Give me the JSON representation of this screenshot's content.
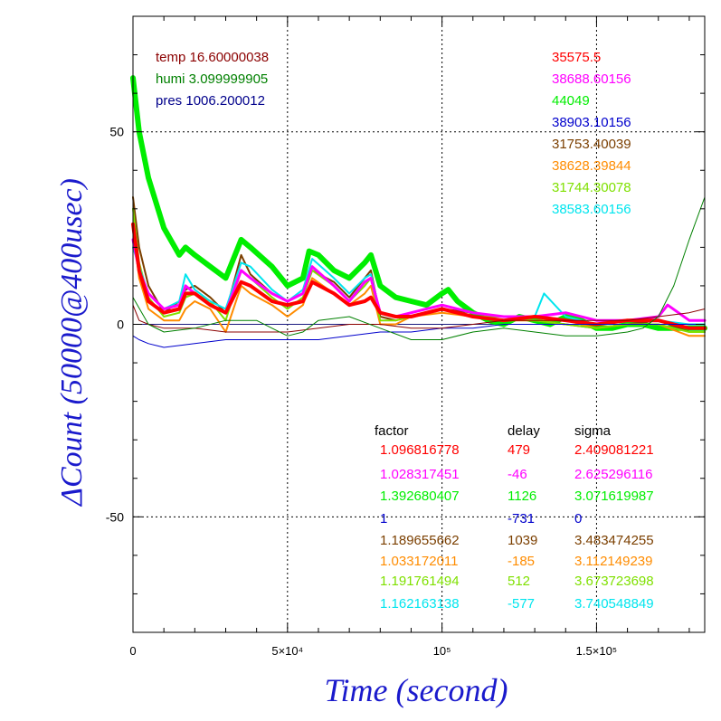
{
  "chart_data": {
    "type": "line",
    "xlabel": "Time (second)",
    "ylabel": "ΔCount (50000@400usec)",
    "xlim": [
      0,
      185000
    ],
    "ylim": [
      -80,
      80
    ],
    "grid": true,
    "x_ticks": [
      {
        "value": 0,
        "label": "0"
      },
      {
        "value": 50000,
        "label": "5×10⁴"
      },
      {
        "value": 100000,
        "label": "10⁵"
      },
      {
        "value": 150000,
        "label": "1.5×10⁵"
      }
    ],
    "y_ticks": [
      {
        "value": 50,
        "label": "50"
      },
      {
        "value": 0,
        "label": "0"
      },
      {
        "value": -50,
        "label": "-50"
      }
    ],
    "weather": [
      {
        "text": "temp 16.60000038",
        "color": "#8b0000"
      },
      {
        "text": "humi 3.099999905",
        "color": "#008000"
      },
      {
        "text": "pres 1006.200012",
        "color": "#00008b"
      }
    ],
    "means": [
      {
        "text": "35575.5",
        "color": "#ff0000"
      },
      {
        "text": "38688.60156",
        "color": "#ff00ff"
      },
      {
        "text": "44049",
        "color": "#00ee00"
      },
      {
        "text": "38903.10156",
        "color": "#0000cc"
      },
      {
        "text": "31753.40039",
        "color": "#7b3f00"
      },
      {
        "text": "38628.39844",
        "color": "#ff8c00"
      },
      {
        "text": "31744.30078",
        "color": "#7fe000"
      },
      {
        "text": "38583.60156",
        "color": "#00e5ee"
      }
    ],
    "table_headers": [
      "factor",
      "delay",
      "sigma"
    ],
    "table_rows": [
      {
        "factor": "1.096816778",
        "delay": "479",
        "sigma": "2.409081221",
        "color": "#ff0000"
      },
      {
        "factor": "1.028317451",
        "delay": "-46",
        "sigma": "2.625296116",
        "color": "#ff00ff"
      },
      {
        "factor": "1.392680407",
        "delay": "1126",
        "sigma": "3.071619987",
        "color": "#00ee00"
      },
      {
        "factor": "1",
        "delay": "-731",
        "sigma": "0",
        "color": "#0000cc"
      },
      {
        "factor": "1.189655662",
        "delay": "1039",
        "sigma": "3.483474255",
        "color": "#7b3f00"
      },
      {
        "factor": "1.033172011",
        "delay": "-185",
        "sigma": "3.112149239",
        "color": "#ff8c00"
      },
      {
        "factor": "1.191761494",
        "delay": "512",
        "sigma": "3.673723698",
        "color": "#7fe000"
      },
      {
        "factor": "1.162163138",
        "delay": "-577",
        "sigma": "3.740548849",
        "color": "#00e5ee"
      }
    ],
    "series": [
      {
        "color": "#00ee00",
        "width": 6,
        "x": [
          0,
          2000,
          5000,
          10000,
          15000,
          17000,
          20000,
          25000,
          30000,
          34000,
          35000,
          38000,
          45000,
          50000,
          55000,
          57000,
          60000,
          65000,
          70000,
          75000,
          77000,
          80000,
          85000,
          90000,
          95000,
          100000,
          102000,
          105000,
          110000,
          115000,
          120000,
          125000,
          130000,
          135000,
          140000,
          145000,
          150000,
          155000,
          160000,
          165000,
          170000,
          175000,
          180000,
          185000
        ],
        "y": [
          64,
          50,
          38,
          25,
          18,
          20,
          18,
          15,
          12,
          20,
          22,
          20,
          15,
          10,
          12,
          19,
          18,
          14,
          12,
          16,
          18,
          10,
          7,
          6,
          5,
          8,
          9,
          6,
          3,
          1,
          0,
          2,
          1,
          0,
          2,
          1,
          -1,
          -1,
          0,
          0,
          -1,
          -1,
          -1,
          -1
        ]
      },
      {
        "color": "#7b3f00",
        "width": 2,
        "x": [
          0,
          2000,
          5000,
          10000,
          15000,
          17000,
          20000,
          25000,
          30000,
          35000,
          38000,
          45000,
          50000,
          55000,
          58000,
          65000,
          70000,
          75000,
          77000,
          80000,
          85000,
          90000,
          100000,
          110000,
          120000,
          130000,
          140000,
          150000,
          160000,
          170000,
          180000,
          185000
        ],
        "y": [
          33,
          20,
          10,
          3,
          6,
          9,
          10,
          7,
          3,
          18,
          13,
          8,
          6,
          8,
          14,
          11,
          7,
          12,
          14,
          2,
          1,
          2,
          4,
          3,
          2,
          1,
          0,
          -1,
          0,
          1,
          -2,
          -2
        ]
      },
      {
        "color": "#ff8c00",
        "width": 2,
        "x": [
          0,
          2000,
          5000,
          10000,
          15000,
          17000,
          20000,
          25000,
          30000,
          35000,
          38000,
          45000,
          50000,
          55000,
          58000,
          65000,
          70000,
          75000,
          77000,
          80000,
          85000,
          90000,
          100000,
          110000,
          120000,
          130000,
          140000,
          150000,
          160000,
          170000,
          180000,
          185000
        ],
        "y": [
          25,
          12,
          4,
          1,
          1,
          4,
          6,
          4,
          -2,
          10,
          8,
          5,
          2,
          5,
          12,
          8,
          5,
          8,
          10,
          0,
          0,
          2,
          3,
          2,
          1,
          1,
          1,
          -1,
          0,
          0,
          -3,
          -3
        ]
      },
      {
        "color": "#7fe000",
        "width": 2,
        "x": [
          0,
          2000,
          5000,
          10000,
          15000,
          17000,
          20000,
          25000,
          30000,
          35000,
          38000,
          45000,
          50000,
          55000,
          58000,
          65000,
          70000,
          75000,
          77000,
          80000,
          85000,
          90000,
          100000,
          110000,
          120000,
          130000,
          140000,
          150000,
          160000,
          170000,
          180000,
          185000
        ],
        "y": [
          30,
          16,
          7,
          2,
          3,
          7,
          8,
          6,
          1,
          14,
          12,
          7,
          4,
          7,
          14,
          10,
          6,
          10,
          12,
          1,
          1,
          2,
          4,
          2,
          2,
          1,
          0,
          -1,
          0,
          0,
          -2,
          -2
        ]
      },
      {
        "color": "#00e5ee",
        "width": 2,
        "x": [
          0,
          2000,
          5000,
          10000,
          15000,
          17000,
          20000,
          25000,
          30000,
          35000,
          38000,
          45000,
          50000,
          55000,
          58000,
          65000,
          70000,
          75000,
          77000,
          80000,
          85000,
          90000,
          100000,
          110000,
          120000,
          130000,
          133000,
          140000,
          150000,
          160000,
          170000,
          180000,
          185000
        ],
        "y": [
          20,
          15,
          8,
          4,
          6,
          13,
          9,
          6,
          4,
          16,
          15,
          9,
          6,
          9,
          17,
          12,
          8,
          12,
          13,
          3,
          2,
          3,
          5,
          3,
          2,
          2,
          8,
          2,
          0,
          1,
          1,
          0,
          0
        ]
      },
      {
        "color": "#ff00ff",
        "width": 3,
        "x": [
          0,
          2000,
          5000,
          10000,
          15000,
          17000,
          20000,
          25000,
          30000,
          35000,
          38000,
          45000,
          50000,
          55000,
          58000,
          65000,
          70000,
          75000,
          77000,
          80000,
          85000,
          90000,
          100000,
          110000,
          120000,
          130000,
          140000,
          150000,
          160000,
          170000,
          173000,
          180000,
          185000
        ],
        "y": [
          22,
          14,
          8,
          4,
          5,
          10,
          8,
          5,
          3,
          14,
          12,
          8,
          6,
          8,
          15,
          10,
          6,
          11,
          12,
          3,
          2,
          3,
          5,
          3,
          2,
          2,
          3,
          1,
          1,
          2,
          5,
          1,
          1
        ]
      },
      {
        "color": "#ff0000",
        "width": 4,
        "x": [
          0,
          2000,
          5000,
          10000,
          15000,
          17000,
          20000,
          25000,
          30000,
          35000,
          38000,
          45000,
          50000,
          55000,
          58000,
          65000,
          70000,
          75000,
          77000,
          80000,
          85000,
          90000,
          100000,
          110000,
          120000,
          130000,
          140000,
          150000,
          160000,
          170000,
          180000,
          185000
        ],
        "y": [
          26,
          14,
          6,
          3,
          4,
          8,
          8,
          5,
          3,
          11,
          10,
          6,
          5,
          6,
          11,
          8,
          5,
          6,
          7,
          3,
          2,
          2,
          4,
          2,
          1,
          2,
          1,
          0,
          1,
          1,
          -1,
          -1
        ]
      },
      {
        "color": "#0000cc",
        "width": 1,
        "x": [
          0,
          2000,
          5000,
          10000,
          20000,
          30000,
          40000,
          50000,
          60000,
          70000,
          80000,
          90000,
          100000,
          110000,
          120000,
          130000,
          140000,
          150000,
          160000,
          170000,
          180000,
          185000
        ],
        "y": [
          -3,
          -4,
          -5,
          -6,
          -5,
          -4,
          -4,
          -4,
          -4,
          -3,
          -2,
          -2,
          -1,
          -1,
          0,
          0,
          0,
          0,
          0,
          0,
          0,
          0
        ]
      },
      {
        "color": "#8b0000",
        "width": 1,
        "x": [
          0,
          2000,
          5000,
          10000,
          20000,
          30000,
          40000,
          50000,
          60000,
          70000,
          80000,
          90000,
          100000,
          110000,
          120000,
          130000,
          140000,
          150000,
          160000,
          170000,
          180000,
          185000
        ],
        "y": [
          5,
          1,
          0,
          -1,
          -1,
          -2,
          -2,
          -2,
          -1,
          0,
          0,
          -1,
          -1,
          0,
          1,
          1,
          1,
          1,
          1,
          2,
          3,
          4
        ]
      },
      {
        "color": "#008000",
        "width": 1,
        "x": [
          0,
          5000,
          10000,
          20000,
          30000,
          40000,
          45000,
          50000,
          55000,
          60000,
          70000,
          80000,
          90000,
          100000,
          110000,
          120000,
          130000,
          140000,
          150000,
          160000,
          165000,
          170000,
          175000,
          180000,
          185000
        ],
        "y": [
          7,
          0,
          -2,
          -1,
          1,
          1,
          -1,
          -3,
          -2,
          1,
          2,
          -1,
          -4,
          -4,
          -2,
          -1,
          -2,
          -3,
          -3,
          -2,
          -1,
          2,
          10,
          22,
          33
        ]
      }
    ]
  }
}
